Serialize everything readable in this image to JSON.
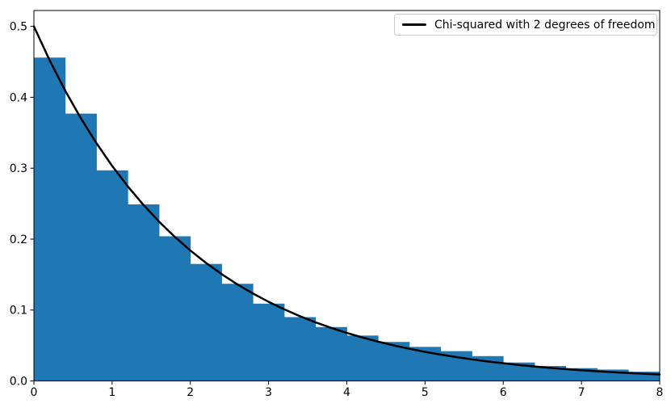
{
  "chart_data": {
    "type": "bar",
    "subtype": "histogram-with-line-overlay",
    "title": "",
    "xlabel": "",
    "ylabel": "",
    "axes": {
      "xlim": [
        0,
        8
      ],
      "ylim": [
        0,
        0.5224
      ],
      "x_tick_values": [
        0,
        1,
        2,
        3,
        4,
        5,
        6,
        7,
        8
      ],
      "x_tick_labels": [
        "0",
        "1",
        "2",
        "3",
        "4",
        "5",
        "6",
        "7",
        "8"
      ],
      "y_tick_values": [
        0.0,
        0.1,
        0.2,
        0.3,
        0.4,
        0.5
      ],
      "y_tick_labels": [
        "0.0",
        "0.1",
        "0.2",
        "0.3",
        "0.4",
        "0.5"
      ],
      "grid": false,
      "spines": "box"
    },
    "histogram": {
      "bin_width": 0.4,
      "bin_edges": [
        0.0,
        0.4,
        0.8,
        1.2,
        1.6,
        2.0,
        2.4,
        2.8,
        3.2,
        3.6,
        4.0,
        4.4,
        4.8,
        5.2,
        5.6,
        6.0,
        6.4,
        6.8,
        7.2,
        7.6,
        8.0
      ],
      "densities": [
        0.456,
        0.377,
        0.297,
        0.249,
        0.204,
        0.165,
        0.137,
        0.109,
        0.09,
        0.076,
        0.064,
        0.055,
        0.048,
        0.042,
        0.035,
        0.026,
        0.021,
        0.018,
        0.016,
        0.013
      ]
    },
    "curve": {
      "name": "Chi-squared with 2 degrees of freedom",
      "x": [
        0.0,
        0.2,
        0.4,
        0.6,
        0.8,
        1.0,
        1.2,
        1.4,
        1.6,
        1.8,
        2.0,
        2.2,
        2.4,
        2.6,
        2.8,
        3.0,
        3.2,
        3.4,
        3.6,
        3.8,
        4.0,
        4.2,
        4.4,
        4.6,
        4.8,
        5.0,
        5.2,
        5.4,
        5.6,
        5.8,
        6.0,
        6.2,
        6.4,
        6.6,
        6.8,
        7.0,
        7.2,
        7.4,
        7.6,
        7.8,
        8.0
      ],
      "y": [
        0.5,
        0.45242,
        0.40937,
        0.37041,
        0.33516,
        0.30327,
        0.27441,
        0.24829,
        0.22466,
        0.20328,
        0.18394,
        0.16644,
        0.1506,
        0.13627,
        0.1233,
        0.11157,
        0.10095,
        0.09135,
        0.08266,
        0.07479,
        0.06767,
        0.06123,
        0.0554,
        0.05013,
        0.04536,
        0.04104,
        0.03714,
        0.0336,
        0.03041,
        0.02751,
        0.02489,
        0.02252,
        0.02038,
        0.01844,
        0.01669,
        0.0151,
        0.01366,
        0.01236,
        0.01119,
        0.01012,
        0.00916
      ]
    },
    "legend": {
      "label": "Chi-squared with 2 degrees of freedom",
      "position": "upper right"
    },
    "colors": {
      "bar_fill": "#1f77b4",
      "curve_stroke": "#000000",
      "axis_stroke": "#000000",
      "tick_label_color": "#000000",
      "legend_border": "#cccccc",
      "background": "#ffffff"
    }
  }
}
